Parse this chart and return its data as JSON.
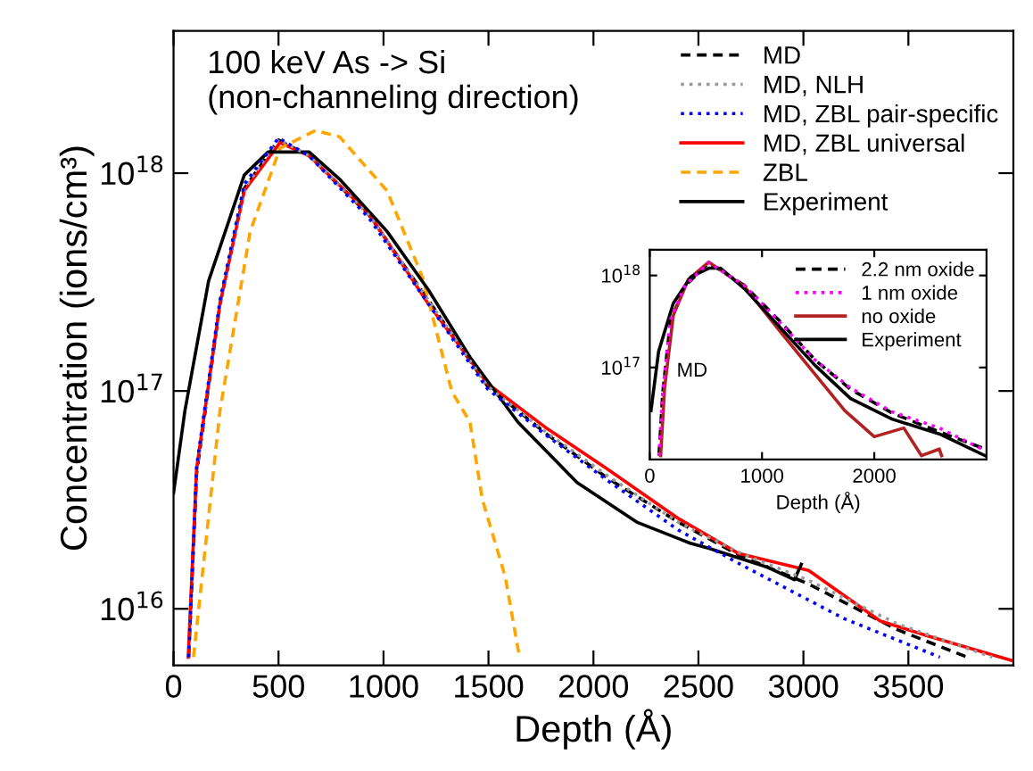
{
  "chart_data": [
    {
      "type": "line",
      "xlabel": "Depth (Å)",
      "ylabel": "Concentration (ions/cm³)",
      "annotations": [
        "100 keV As -> Si\n(non-channeling direction)"
      ],
      "log": "y",
      "xlim": [
        0,
        4000
      ],
      "ylim": [
        5500000000000000.0,
        4.5e+18
      ],
      "xticks": [
        0,
        500,
        1000,
        1500,
        2000,
        2500,
        3000,
        3500
      ],
      "yticks": [
        {
          "value": 1e+16,
          "label": "10$^{16}$"
        },
        {
          "value": 1e+17,
          "label": "10$^{17}$"
        },
        {
          "value": 1e+18,
          "label": "10$^{18}$"
        }
      ],
      "grid": false,
      "legend": "top right",
      "marker": "none",
      "series": [
        {
          "name": "MD",
          "color": "#000000",
          "line_style": "dashed",
          "x": [
            72,
            110,
            221,
            337,
            500,
            646,
            932,
            1215,
            1496,
            1781,
            2064,
            2404,
            2700,
            3025,
            3450,
            3780
          ],
          "values": [
            6000000000000000.0,
            4.2e+16,
            2.5e+17,
            8.5e+17,
            1.42e+18,
            1.2e+18,
            6.4e+17,
            2.6e+17,
            1.05e+17,
            6.3e+16,
            4e+16,
            2.5e+16,
            1.75e+16,
            1.3e+16,
            8000000000000000.0,
            6000000000000000.0
          ]
        },
        {
          "name": "MD, NLH",
          "color": "#999999",
          "line_style": "dotted",
          "x": [
            72,
            110,
            221,
            337,
            500,
            646,
            932,
            1215,
            1496,
            1781,
            2064,
            2404,
            2700,
            3025,
            3450,
            3900
          ],
          "values": [
            6000000000000000.0,
            4.3e+16,
            2.5e+17,
            8.5e+17,
            1.43e+18,
            1.2e+18,
            6.4e+17,
            2.6e+17,
            1.05e+17,
            6.4e+16,
            4.1e+16,
            2.5e+16,
            1.8e+16,
            1.35e+16,
            8500000000000000.0,
            6000000000000000.0
          ]
        },
        {
          "name": "MD, ZBL pair-specific",
          "color": "#0000ff",
          "line_style": "dotted",
          "x": [
            72,
            110,
            221,
            337,
            500,
            646,
            932,
            1215,
            1496,
            1781,
            2064,
            2404,
            2700,
            3195,
            3650
          ],
          "values": [
            6000000000000000.0,
            4.5e+16,
            2.6e+17,
            8.9e+17,
            1.45e+18,
            1.2e+18,
            6.2e+17,
            2.5e+17,
            1.02e+17,
            6.2e+16,
            3.9e+16,
            2.3e+16,
            1.6e+16,
            9000000000000000.0,
            6000000000000000.0
          ]
        },
        {
          "name": "MD, ZBL universal",
          "color": "#ff0000",
          "line_style": "solid",
          "x": [
            70,
            110,
            221,
            337,
            507,
            646,
            932,
            1215,
            1496,
            1781,
            2064,
            2404,
            2688,
            3025,
            3365,
            3594,
            3790,
            3990
          ],
          "values": [
            6000000000000000.0,
            4.4e+16,
            2.5e+17,
            8.3e+17,
            1.38e+18,
            1.2e+18,
            6.5e+17,
            2.5e+17,
            1.08e+17,
            6.7e+16,
            4.4e+16,
            2.6e+16,
            1.8e+16,
            1.5e+16,
            8800000000000000.0,
            7500000000000000.0,
            6600000000000000.0,
            5800000000000000.0
          ]
        },
        {
          "name": "ZBL",
          "color": "#ffa500",
          "line_style": "dashed",
          "x": [
            95,
            221,
            365,
            507,
            676,
            790,
            1017,
            1187,
            1326,
            1412,
            1470,
            1580,
            1640,
            1648
          ],
          "values": [
            6000000000000000.0,
            8.1e+16,
            5.4e+17,
            1.3e+18,
            1.57e+18,
            1.47e+18,
            8.3e+17,
            3.3e+17,
            9.9e+16,
            7.2e+16,
            3.2e+16,
            1.4e+16,
            6600000000000000.0,
            6000000000000000.0
          ]
        },
        {
          "name": "Experiment",
          "color": "#000000",
          "line_style": "solid",
          "x": [
            0,
            54,
            167,
            337,
            450,
            646,
            790,
            1017,
            1215,
            1412,
            1640,
            1922,
            2206,
            2461,
            2547,
            2830,
            2957,
            2990
          ],
          "values": [
            3.4e+16,
            8.1e+16,
            3.2e+17,
            9.8e+17,
            1.25e+18,
            1.25e+18,
            9.4e+17,
            5.4e+17,
            2.9e+17,
            1.43e+17,
            7.2e+16,
            3.8e+16,
            2.5e+16,
            2e+16,
            1.9e+16,
            1.55e+16,
            1.36e+16,
            1.6e+16
          ]
        }
      ]
    },
    {
      "type": "line",
      "xlabel": "Depth (Å)",
      "annotations": [
        "MD"
      ],
      "log": "y",
      "xlim": [
        0,
        3000
      ],
      "ylim": [
        1e+16,
        1.9e+18
      ],
      "xticks": [
        0,
        1000,
        2000
      ],
      "yticks": [
        {
          "value": 1e+17,
          "label": "10$^{17}$"
        },
        {
          "value": 1e+18,
          "label": "10$^{18}$"
        }
      ],
      "grid": false,
      "legend": "top right",
      "marker": "none",
      "series": [
        {
          "name": "2.2 nm oxide",
          "color": "#000000",
          "line_style": "dashed",
          "x": [
            82,
            116,
            184,
            316,
            526,
            842,
            1158,
            1474,
            1789,
            2158,
            2579,
            2989
          ],
          "values": [
            1.1e+16,
            5.4e+16,
            3.2e+17,
            7.7e+17,
            1.37e+18,
            7.8e+17,
            3.2e+17,
            1.2e+17,
            5.8e+16,
            3.2e+16,
            2e+16,
            1.3e+16
          ]
        },
        {
          "name": "1 nm oxide",
          "color": "#ff00ff",
          "line_style": "dotted",
          "x": [
            82,
            116,
            184,
            316,
            526,
            842,
            1158,
            1474,
            1789,
            2158,
            2579,
            2989
          ],
          "values": [
            1.1e+16,
            5.5e+16,
            3.3e+17,
            7.8e+17,
            1.38e+18,
            7.8e+17,
            3.1e+17,
            1.2e+17,
            6e+16,
            3.3e+16,
            2.2e+16,
            1.25e+16
          ]
        },
        {
          "name": "no oxide",
          "color": "#b22222",
          "line_style": "solid",
          "x": [
            97,
            132,
            210,
            342,
            526,
            842,
            1158,
            1474,
            1737,
            2000,
            2263,
            2421,
            2579,
            2600
          ],
          "values": [
            1.1e+16,
            6e+16,
            3.7e+17,
            9e+17,
            1.4e+18,
            7.6e+17,
            2.5e+17,
            8.4e+16,
            3.4e+16,
            1.77e+16,
            2.2e+16,
            1.1e+16,
            1.3e+16,
            1.1e+16
          ]
        },
        {
          "name": "Experiment",
          "color": "#000000",
          "line_style": "solid",
          "x": [
            11,
            79,
            210,
            368,
            526,
            632,
            842,
            1158,
            1474,
            1789,
            2158,
            2579,
            2989
          ],
          "values": [
            3.4e+16,
            1.5e+17,
            5e+17,
            9.7e+17,
            1.2e+18,
            1.2e+18,
            7.2e+17,
            2.75e+17,
            1.05e+17,
            4.6e+16,
            2.75e+16,
            1.9e+16,
            1.1e+16
          ]
        }
      ]
    }
  ]
}
